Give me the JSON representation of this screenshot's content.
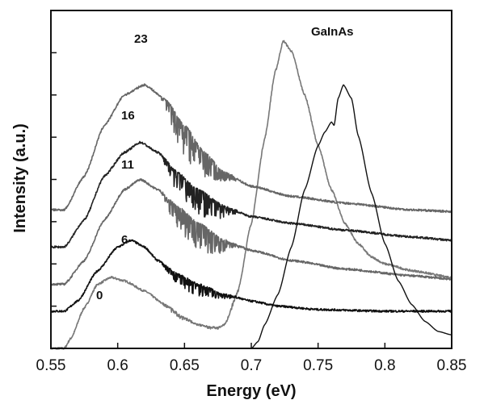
{
  "chart_data": {
    "type": "line",
    "xlabel": "Energy (eV)",
    "ylabel": "Intensity (a.u.)",
    "xlim": [
      0.55,
      0.85
    ],
    "ylim": [
      0,
      1
    ],
    "x_ticks": [
      "0.55",
      "0.6",
      "0.65",
      "0.7",
      "0.75",
      "0.8",
      "0.85"
    ],
    "y_ticks_labeled": false,
    "grid": false,
    "legend": "none",
    "series": [
      {
        "name": "0",
        "color": "#777777",
        "noise": true,
        "offset": 0.07,
        "points": [
          [
            0.55,
            0.0
          ],
          [
            0.56,
            0.0
          ],
          [
            0.565,
            0.03
          ],
          [
            0.575,
            0.12
          ],
          [
            0.585,
            0.19
          ],
          [
            0.595,
            0.21
          ],
          [
            0.605,
            0.2
          ],
          [
            0.62,
            0.17
          ],
          [
            0.635,
            0.13
          ],
          [
            0.65,
            0.09
          ],
          [
            0.66,
            0.07
          ],
          [
            0.67,
            0.06
          ],
          [
            0.675,
            0.06
          ],
          [
            0.68,
            0.07
          ],
          [
            0.69,
            0.17
          ],
          [
            0.7,
            0.37
          ],
          [
            0.71,
            0.62
          ],
          [
            0.718,
            0.82
          ],
          [
            0.724,
            0.91
          ],
          [
            0.73,
            0.88
          ],
          [
            0.74,
            0.75
          ],
          [
            0.75,
            0.6
          ],
          [
            0.76,
            0.47
          ],
          [
            0.77,
            0.37
          ],
          [
            0.78,
            0.31
          ],
          [
            0.79,
            0.27
          ],
          [
            0.8,
            0.25
          ],
          [
            0.82,
            0.23
          ],
          [
            0.85,
            0.21
          ]
        ]
      },
      {
        "name": "6",
        "color": "#111111",
        "noise": true,
        "offset": 0.11,
        "points": [
          [
            0.55,
            0.11
          ],
          [
            0.56,
            0.11
          ],
          [
            0.57,
            0.14
          ],
          [
            0.585,
            0.23
          ],
          [
            0.6,
            0.3
          ],
          [
            0.61,
            0.32
          ],
          [
            0.62,
            0.3
          ],
          [
            0.63,
            0.26
          ],
          [
            0.645,
            0.22
          ],
          [
            0.66,
            0.19
          ],
          [
            0.68,
            0.16
          ],
          [
            0.7,
            0.14
          ],
          [
            0.72,
            0.125
          ],
          [
            0.75,
            0.115
          ],
          [
            0.8,
            0.11
          ],
          [
            0.85,
            0.11
          ]
        ]
      },
      {
        "name": "11",
        "color": "#666666",
        "noise": true,
        "offset": 0.19,
        "points": [
          [
            0.55,
            0.19
          ],
          [
            0.56,
            0.19
          ],
          [
            0.575,
            0.26
          ],
          [
            0.59,
            0.38
          ],
          [
            0.605,
            0.47
          ],
          [
            0.617,
            0.5
          ],
          [
            0.63,
            0.47
          ],
          [
            0.645,
            0.42
          ],
          [
            0.66,
            0.37
          ],
          [
            0.68,
            0.32
          ],
          [
            0.7,
            0.29
          ],
          [
            0.73,
            0.26
          ],
          [
            0.77,
            0.235
          ],
          [
            0.82,
            0.215
          ],
          [
            0.85,
            0.205
          ]
        ]
      },
      {
        "name": "16",
        "color": "#222222",
        "noise": true,
        "offset": 0.3,
        "points": [
          [
            0.55,
            0.3
          ],
          [
            0.56,
            0.3
          ],
          [
            0.575,
            0.38
          ],
          [
            0.59,
            0.51
          ],
          [
            0.605,
            0.58
          ],
          [
            0.617,
            0.61
          ],
          [
            0.63,
            0.58
          ],
          [
            0.645,
            0.52
          ],
          [
            0.66,
            0.47
          ],
          [
            0.68,
            0.42
          ],
          [
            0.7,
            0.39
          ],
          [
            0.73,
            0.37
          ],
          [
            0.77,
            0.35
          ],
          [
            0.82,
            0.33
          ],
          [
            0.85,
            0.32
          ]
        ]
      },
      {
        "name": "23",
        "color": "#666666",
        "noise": true,
        "offset": 0.41,
        "points": [
          [
            0.55,
            0.41
          ],
          [
            0.56,
            0.41
          ],
          [
            0.575,
            0.51
          ],
          [
            0.59,
            0.66
          ],
          [
            0.605,
            0.75
          ],
          [
            0.62,
            0.78
          ],
          [
            0.635,
            0.74
          ],
          [
            0.65,
            0.66
          ],
          [
            0.665,
            0.58
          ],
          [
            0.68,
            0.52
          ],
          [
            0.7,
            0.48
          ],
          [
            0.73,
            0.45
          ],
          [
            0.77,
            0.43
          ],
          [
            0.82,
            0.41
          ],
          [
            0.85,
            0.405
          ]
        ]
      },
      {
        "name": "GaInAs",
        "color": "#111111",
        "noise": false,
        "offset": 0.0,
        "points": [
          [
            0.55,
            0.0
          ],
          [
            0.7,
            0.0
          ],
          [
            0.705,
            0.02
          ],
          [
            0.71,
            0.07
          ],
          [
            0.72,
            0.16
          ],
          [
            0.73,
            0.3
          ],
          [
            0.74,
            0.47
          ],
          [
            0.75,
            0.6
          ],
          [
            0.755,
            0.64
          ],
          [
            0.76,
            0.67
          ],
          [
            0.762,
            0.66
          ],
          [
            0.765,
            0.74
          ],
          [
            0.769,
            0.78
          ],
          [
            0.775,
            0.74
          ],
          [
            0.78,
            0.63
          ],
          [
            0.79,
            0.46
          ],
          [
            0.8,
            0.31
          ],
          [
            0.81,
            0.2
          ],
          [
            0.82,
            0.13
          ],
          [
            0.83,
            0.08
          ],
          [
            0.84,
            0.05
          ],
          [
            0.85,
            0.04
          ]
        ]
      }
    ],
    "annotations": [
      "0",
      "6",
      "11",
      "16",
      "23",
      "GaInAs"
    ]
  }
}
